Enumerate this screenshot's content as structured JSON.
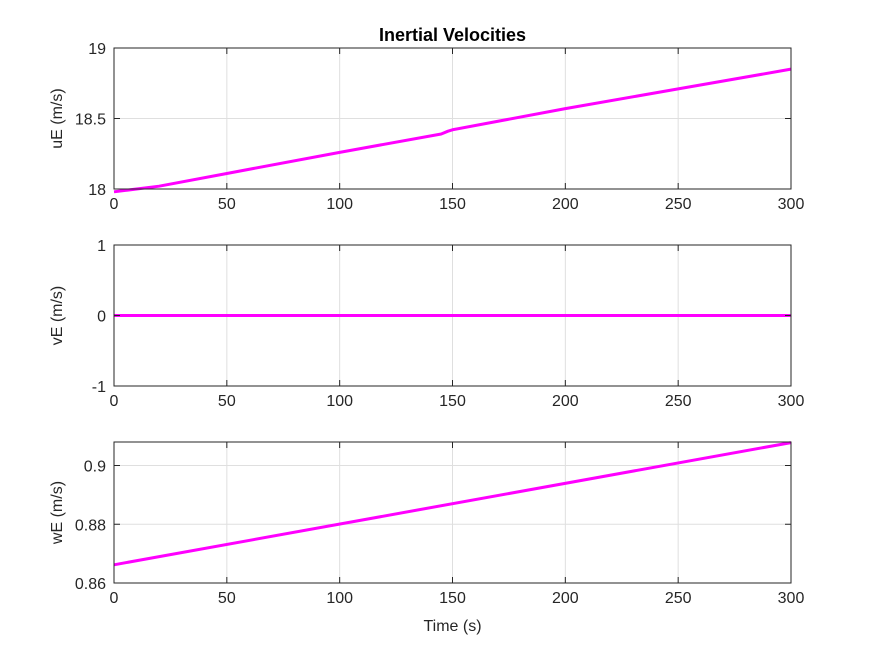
{
  "figure": {
    "line_color": "#ff00ff",
    "grid_color": "#dfdfdf",
    "axis_color": "#262626"
  },
  "chart_data": [
    {
      "type": "line",
      "title": "Inertial Velocities",
      "xlabel": "",
      "ylabel": "uE (m/s)",
      "xlim": [
        0,
        300
      ],
      "ylim": [
        18,
        19
      ],
      "xticks": [
        0,
        50,
        100,
        150,
        200,
        250,
        300
      ],
      "yticks": [
        18,
        18.5,
        19
      ],
      "xtick_labels": [
        "0",
        "50",
        "100",
        "150",
        "200",
        "250",
        "300"
      ],
      "ytick_labels": [
        "18",
        "18.5",
        "19"
      ],
      "grid": true,
      "series": [
        {
          "x": [
            0,
            5,
            10,
            20,
            50,
            100,
            145,
            148,
            150,
            200,
            250,
            300
          ],
          "y": [
            17.98,
            17.99,
            18.0,
            18.02,
            18.11,
            18.26,
            18.39,
            18.41,
            18.42,
            18.57,
            18.71,
            18.85
          ]
        }
      ]
    },
    {
      "type": "line",
      "title": "",
      "xlabel": "",
      "ylabel": "vE (m/s)",
      "xlim": [
        0,
        300
      ],
      "ylim": [
        -1,
        1
      ],
      "xticks": [
        0,
        50,
        100,
        150,
        200,
        250,
        300
      ],
      "yticks": [
        -1,
        0,
        1
      ],
      "xtick_labels": [
        "0",
        "50",
        "100",
        "150",
        "200",
        "250",
        "300"
      ],
      "ytick_labels": [
        "-1",
        "0",
        "1"
      ],
      "grid": true,
      "series": [
        {
          "x": [
            0,
            300
          ],
          "y": [
            0,
            0
          ]
        }
      ]
    },
    {
      "type": "line",
      "title": "",
      "xlabel": "Time (s)",
      "ylabel": "wE (m/s)",
      "xlim": [
        0,
        300
      ],
      "ylim": [
        0.86,
        0.908
      ],
      "xticks": [
        0,
        50,
        100,
        150,
        200,
        250,
        300
      ],
      "yticks": [
        0.86,
        0.88,
        0.9
      ],
      "xtick_labels": [
        "0",
        "50",
        "100",
        "150",
        "200",
        "250",
        "300"
      ],
      "ytick_labels": [
        "0.86",
        "0.88",
        "0.9"
      ],
      "grid": true,
      "series": [
        {
          "x": [
            0,
            300
          ],
          "y": [
            0.8662,
            0.9078
          ]
        }
      ]
    }
  ]
}
